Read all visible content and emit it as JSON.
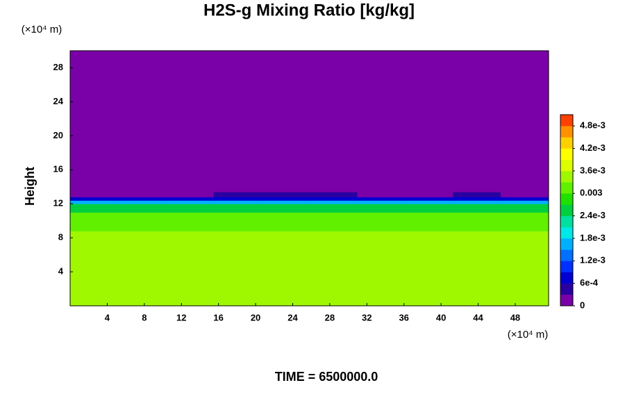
{
  "chart_data": {
    "type": "contour",
    "title": "H2S-g Mixing Ratio [kg/kg]",
    "ylabel": "Height",
    "x_unit": "(×10⁴ m)",
    "y_unit": "(×10⁴ m)",
    "footer": "TIME = 6500000.0",
    "xlim": [
      0,
      51.6
    ],
    "ylim": [
      0,
      30
    ],
    "xticks": [
      4,
      8,
      12,
      16,
      20,
      24,
      28,
      32,
      36,
      40,
      44,
      48
    ],
    "yticks": [
      4,
      8,
      12,
      16,
      20,
      24,
      28
    ],
    "x_edges": [
      0,
      5.16,
      10.32,
      15.48,
      20.64,
      25.8,
      30.96,
      36.12,
      41.28,
      46.44,
      51.6
    ],
    "y_edges": [
      0,
      8.8,
      10,
      11,
      12,
      12.4,
      12.8,
      13.4,
      30
    ],
    "z": [
      [
        0.0036,
        0.0036,
        0.0036,
        0.0036,
        0.0036,
        0.0036,
        0.0036,
        0.0036,
        0.0036,
        0.0036
      ],
      [
        0.0033,
        0.0033,
        0.0033,
        0.0033,
        0.0033,
        0.0033,
        0.0033,
        0.0033,
        0.0033,
        0.0033
      ],
      [
        0.003,
        0.003,
        0.003,
        0.003,
        0.003,
        0.003,
        0.003,
        0.003,
        0.003,
        0.003
      ],
      [
        0.0025,
        0.0025,
        0.0025,
        0.0025,
        0.0025,
        0.0025,
        0.0025,
        0.0025,
        0.0025,
        0.0025
      ],
      [
        0.0017,
        0.0017,
        0.0017,
        0.0017,
        0.0017,
        0.0017,
        0.0017,
        0.0017,
        0.0017,
        0.0017
      ],
      [
        0.0007,
        0.0007,
        0.0007,
        0.0007,
        0.0007,
        0.0007,
        0.0007,
        0.0007,
        0.0007,
        0.0007
      ],
      [
        0,
        0,
        0,
        0.0004,
        0.0004,
        0.0004,
        0,
        0,
        0.0004,
        0
      ],
      [
        0,
        0,
        0,
        0,
        0,
        0,
        0,
        0,
        0,
        0
      ]
    ],
    "zlim": [
      0,
      0.0051
    ],
    "colorscale": [
      "#7a00a8",
      "#2a00a0",
      "#0000d0",
      "#0030ff",
      "#0070ff",
      "#00b0ff",
      "#00e8e8",
      "#00e0a0",
      "#00d040",
      "#20e000",
      "#60f000",
      "#a0f800",
      "#ddff00",
      "#ffff00",
      "#ffd000",
      "#ff9000",
      "#ff4000"
    ],
    "zticks": [
      0,
      {
        "value": 0.0006,
        "label": "6e-4"
      },
      {
        "value": 0.0012,
        "label": "1.2e-3"
      },
      {
        "value": 0.0018,
        "label": "1.8e-3"
      },
      {
        "value": 0.0024,
        "label": "2.4e-3"
      },
      0.003,
      {
        "value": 0.0036,
        "label": "3.6e-3"
      },
      {
        "value": 0.0042,
        "label": "4.2e-3"
      },
      {
        "value": 0.0048,
        "label": "4.8e-3"
      }
    ]
  }
}
